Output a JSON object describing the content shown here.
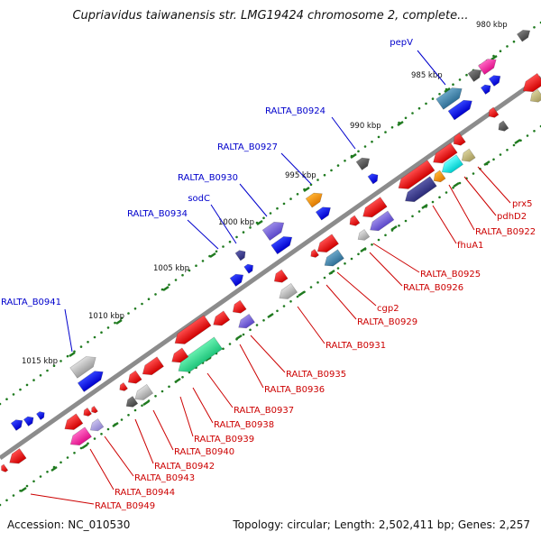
{
  "title": "Cupriavidus taiwanensis str. LMG19424 chromosome 2, complete...",
  "accession": "Accession: NC_010530",
  "topology": "Topology: circular; Length: 2,502,411 bp; Genes: 2,257",
  "colors": {
    "backbone": "#8c8c8c",
    "forward_label": "#0000cc",
    "reverse_label": "#cc0000",
    "tick": "#1f7a1f"
  },
  "kbp_labels": [
    {
      "text": "980 kbp",
      "pos": 980
    },
    {
      "text": "985 kbp",
      "pos": 985
    },
    {
      "text": "990 kbp",
      "pos": 990
    },
    {
      "text": "995 kbp",
      "pos": 995
    },
    {
      "text": "1000 kbp",
      "pos": 1000
    },
    {
      "text": "1005 kbp",
      "pos": 1005
    },
    {
      "text": "1010 kbp",
      "pos": 1010
    },
    {
      "text": "1015 kbp",
      "pos": 1015
    }
  ],
  "forward_labels": [
    {
      "text": "pepV"
    },
    {
      "text": "RALTA_B0924"
    },
    {
      "text": "RALTA_B0927"
    },
    {
      "text": "RALTA_B0930"
    },
    {
      "text": "sodC"
    },
    {
      "text": "RALTA_B0934"
    },
    {
      "text": "RALTA_B0941"
    }
  ],
  "reverse_labels": [
    {
      "text": "prx5"
    },
    {
      "text": "pdhD2"
    },
    {
      "text": "RALTA_B0922"
    },
    {
      "text": "fhuA1"
    },
    {
      "text": "RALTA_B0925"
    },
    {
      "text": "RALTA_B0926"
    },
    {
      "text": "cgp2"
    },
    {
      "text": "RALTA_B0929"
    },
    {
      "text": "RALTA_B0931"
    },
    {
      "text": "RALTA_B0935"
    },
    {
      "text": "RALTA_B0936"
    },
    {
      "text": "RALTA_B0937"
    },
    {
      "text": "RALTA_B0938"
    },
    {
      "text": "RALTA_B0939"
    },
    {
      "text": "RALTA_B0940"
    },
    {
      "text": "RALTA_B0942"
    },
    {
      "text": "RALTA_B0943"
    },
    {
      "text": "RALTA_B0944"
    },
    {
      "text": "RALTA_B0949"
    }
  ]
}
